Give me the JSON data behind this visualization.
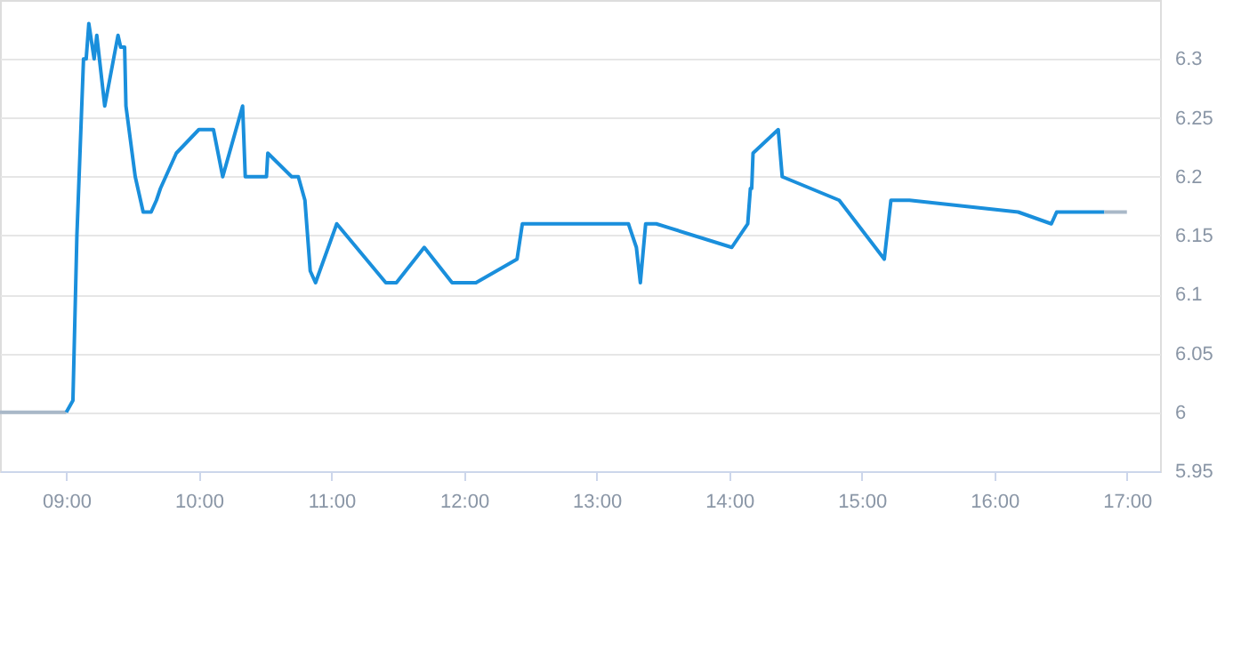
{
  "chart_data": {
    "type": "line",
    "xlim": [
      8.5,
      17.25
    ],
    "xticks": [
      {
        "value": 9,
        "label": "09:00"
      },
      {
        "value": 10,
        "label": "10:00"
      },
      {
        "value": 11,
        "label": "11:00"
      },
      {
        "value": 12,
        "label": "12:00"
      },
      {
        "value": 13,
        "label": "13:00"
      },
      {
        "value": 14,
        "label": "14:00"
      },
      {
        "value": 15,
        "label": "15:00"
      },
      {
        "value": 16,
        "label": "16:00"
      },
      {
        "value": 17,
        "label": "17:00"
      }
    ],
    "ylim": [
      5.95,
      6.35
    ],
    "yticks": [
      5.95,
      6,
      6.05,
      6.1,
      6.15,
      6.2,
      6.25,
      6.3
    ],
    "grid": "y",
    "marker": "none",
    "line_style": "solid",
    "series": [
      {
        "color": "#a9b8c8",
        "x": [
          8.5,
          9.0
        ],
        "values": [
          6.0,
          6.0
        ]
      },
      {
        "color": "#1a8fdc",
        "x": [
          9.0,
          9.05,
          9.08,
          9.13,
          9.15,
          9.17,
          9.21,
          9.23,
          9.25,
          9.29,
          9.39,
          9.41,
          9.44,
          9.45,
          9.52,
          9.58,
          9.64,
          9.68,
          9.71,
          9.83,
          10.0,
          10.11,
          10.18,
          10.33,
          10.35,
          10.51,
          10.52,
          10.7,
          10.75,
          10.8,
          10.84,
          10.88,
          11.04,
          11.41,
          11.49,
          11.7,
          11.91,
          12.09,
          12.4,
          12.44,
          13.24,
          13.3,
          13.33,
          13.37,
          13.45,
          14.02,
          14.14,
          14.16,
          14.17,
          14.18,
          14.37,
          14.4,
          14.83,
          15.17,
          15.22,
          15.36,
          16.18,
          16.43,
          16.47,
          16.83
        ],
        "values": [
          6.0,
          6.01,
          6.15,
          6.3,
          6.3,
          6.33,
          6.3,
          6.32,
          6.3,
          6.26,
          6.32,
          6.31,
          6.31,
          6.26,
          6.2,
          6.17,
          6.17,
          6.18,
          6.19,
          6.22,
          6.24,
          6.24,
          6.2,
          6.26,
          6.2,
          6.2,
          6.22,
          6.2,
          6.2,
          6.18,
          6.12,
          6.11,
          6.16,
          6.11,
          6.11,
          6.14,
          6.11,
          6.11,
          6.13,
          6.16,
          6.16,
          6.14,
          6.11,
          6.16,
          6.16,
          6.14,
          6.16,
          6.19,
          6.19,
          6.22,
          6.24,
          6.2,
          6.18,
          6.13,
          6.18,
          6.18,
          6.17,
          6.16,
          6.17,
          6.17
        ]
      },
      {
        "color": "#a9b8c8",
        "x": [
          16.83,
          17.0
        ],
        "values": [
          6.17,
          6.17
        ]
      }
    ]
  }
}
